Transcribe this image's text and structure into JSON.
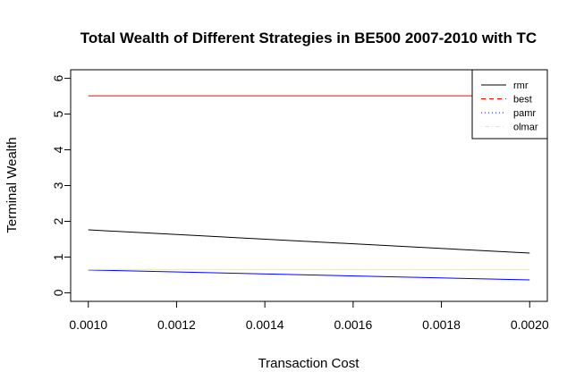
{
  "chart_data": {
    "type": "line",
    "title": "Total Wealth of Different Strategies in BE500 2007-2010 with TC",
    "xlabel": "Transaction Cost",
    "ylabel": "Terminal Wealth",
    "xlim": [
      0.00096,
      0.00204
    ],
    "ylim": [
      -0.24,
      6.24
    ],
    "xticks": [
      "0.0010",
      "0.0012",
      "0.0014",
      "0.0016",
      "0.0018",
      "0.0020"
    ],
    "xtick_values": [
      0.001,
      0.0012,
      0.0014,
      0.0016,
      0.0018,
      0.002
    ],
    "yticks": [
      "0",
      "1",
      "2",
      "3",
      "4",
      "5",
      "6"
    ],
    "ytick_values": [
      0,
      1,
      2,
      3,
      4,
      5,
      6
    ],
    "grid": false,
    "legend_position": "top-right",
    "x": [
      0.001,
      0.002
    ],
    "series": [
      {
        "name": "rmr",
        "color": "#000000",
        "dash": "solid",
        "values": [
          1.76,
          1.11
        ]
      },
      {
        "name": "best",
        "color": "#ff0000",
        "dash": "dashed",
        "values": [
          5.51,
          5.51
        ]
      },
      {
        "name": "pamr",
        "color": "#0000ff",
        "dash": "dotted",
        "values": [
          0.64,
          0.36
        ]
      },
      {
        "name": "olmar",
        "color": "#ffff00",
        "dash": "dotdash",
        "values": [
          0.65,
          0.65
        ]
      }
    ]
  }
}
